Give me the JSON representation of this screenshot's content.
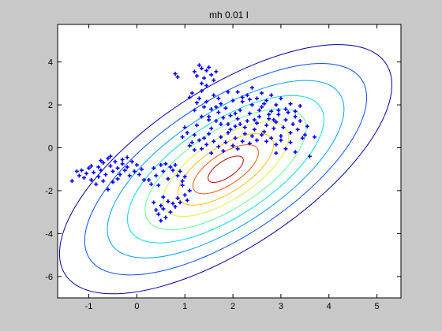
{
  "chart_data": {
    "type": "scatter",
    "title": "mh 0.01 I",
    "xlabel": "",
    "ylabel": "",
    "xlim": [
      -1.65,
      5.5
    ],
    "ylim": [
      -7.0,
      5.75
    ],
    "xticks": [
      "-1",
      "0",
      "1",
      "2",
      "3",
      "4",
      "5"
    ],
    "xtick_values": [
      -1,
      0,
      1,
      2,
      3,
      4,
      5
    ],
    "yticks": [
      "4",
      "2",
      "0",
      "-2",
      "-4",
      "-6"
    ],
    "ytick_values": [
      4,
      2,
      0,
      -2,
      -4,
      -6
    ],
    "grid": false,
    "colors": {
      "figure_bg": "#c8c8c8",
      "axes_bg": "#ffffff",
      "points": "#0000ff"
    },
    "gaussian": {
      "mean": [
        1.85,
        -1.0
      ],
      "covariance": [
        [
          1.1,
          1.25
        ],
        [
          1.25,
          3.1
        ]
      ],
      "contour_levels": [
        {
          "mahalanobis": 3.3,
          "color": "#0000a8"
        },
        {
          "mahalanobis": 2.8,
          "color": "#0050ff"
        },
        {
          "mahalanobis": 2.35,
          "color": "#00a0ff"
        },
        {
          "mahalanobis": 1.95,
          "color": "#00e0e0"
        },
        {
          "mahalanobis": 1.6,
          "color": "#60ff90"
        },
        {
          "mahalanobis": 1.25,
          "color": "#d0ff30"
        },
        {
          "mahalanobis": 0.95,
          "color": "#ffc000"
        },
        {
          "mahalanobis": 0.65,
          "color": "#ff5000"
        },
        {
          "mahalanobis": 0.35,
          "color": "#c00000"
        }
      ]
    },
    "series": [
      {
        "marker": "+",
        "points": [
          [
            -1.35,
            -1.55
          ],
          [
            -1.2,
            -1.3
          ],
          [
            -1.15,
            -1.05
          ],
          [
            -1.1,
            -1.4
          ],
          [
            -1.05,
            -1.2
          ],
          [
            -1.0,
            -0.95
          ],
          [
            -0.95,
            -1.5
          ],
          [
            -0.9,
            -1.15
          ],
          [
            -0.85,
            -1.7
          ],
          [
            -0.8,
            -1.35
          ],
          [
            -0.8,
            -0.9
          ],
          [
            -0.75,
            -1.05
          ],
          [
            -0.7,
            -0.7
          ],
          [
            -0.7,
            -1.55
          ],
          [
            -0.65,
            -1.25
          ],
          [
            -0.6,
            -0.5
          ],
          [
            -0.6,
            -1.95
          ],
          [
            -0.55,
            -0.85
          ],
          [
            -0.5,
            -1.1
          ],
          [
            -0.5,
            -1.6
          ],
          [
            -0.45,
            -0.65
          ],
          [
            -0.4,
            -1.45
          ],
          [
            -0.4,
            -0.95
          ],
          [
            -0.35,
            -1.25
          ],
          [
            -0.3,
            -0.75
          ],
          [
            -0.3,
            -0.55
          ],
          [
            -0.25,
            -1.05
          ],
          [
            -0.2,
            -0.9
          ],
          [
            -0.15,
            -1.3
          ],
          [
            -0.1,
            -0.65
          ],
          [
            -0.05,
            -1.1
          ],
          [
            0.0,
            -0.8
          ],
          [
            0.05,
            -1.25
          ],
          [
            0.1,
            -1.0
          ],
          [
            0.15,
            -1.5
          ],
          [
            -1.25,
            -1.1
          ],
          [
            -0.95,
            -0.85
          ],
          [
            -0.75,
            -0.6
          ],
          [
            -0.55,
            -0.4
          ],
          [
            -0.2,
            -0.45
          ],
          [
            0.25,
            -1.5
          ],
          [
            0.3,
            -1.7
          ],
          [
            0.35,
            -0.95
          ],
          [
            0.4,
            -1.3
          ],
          [
            0.45,
            -1.75
          ],
          [
            0.5,
            -0.8
          ],
          [
            0.55,
            -1.1
          ],
          [
            0.6,
            -0.75
          ],
          [
            0.65,
            -1.45
          ],
          [
            0.7,
            -0.9
          ],
          [
            0.75,
            -1.05
          ],
          [
            0.8,
            -0.8
          ],
          [
            0.85,
            -1.3
          ],
          [
            0.9,
            -1.1
          ],
          [
            0.95,
            -1.55
          ],
          [
            1.0,
            -1.35
          ],
          [
            0.35,
            -2.55
          ],
          [
            0.4,
            -2.9
          ],
          [
            0.45,
            -3.1
          ],
          [
            0.5,
            -2.7
          ],
          [
            0.55,
            -2.85
          ],
          [
            0.6,
            -3.25
          ],
          [
            0.65,
            -2.5
          ],
          [
            0.7,
            -3.0
          ],
          [
            0.75,
            -2.6
          ],
          [
            0.8,
            -2.75
          ],
          [
            0.85,
            -2.35
          ],
          [
            0.9,
            -2.55
          ],
          [
            1.0,
            -2.2
          ],
          [
            1.05,
            -2.45
          ],
          [
            1.1,
            -2.0
          ],
          [
            0.5,
            -3.4
          ],
          [
            0.55,
            -2.3
          ],
          [
            0.95,
            -1.75
          ],
          [
            0.8,
            3.45
          ],
          [
            0.85,
            3.3
          ],
          [
            1.2,
            3.55
          ],
          [
            1.25,
            3.35
          ],
          [
            1.3,
            3.85
          ],
          [
            1.35,
            3.7
          ],
          [
            1.4,
            3.25
          ],
          [
            1.45,
            3.6
          ],
          [
            1.5,
            3.75
          ],
          [
            1.55,
            3.4
          ],
          [
            1.6,
            3.15
          ],
          [
            1.65,
            3.55
          ],
          [
            1.35,
            3.0
          ],
          [
            1.45,
            2.9
          ],
          [
            1.1,
            2.35
          ],
          [
            1.15,
            2.55
          ],
          [
            1.2,
            1.75
          ],
          [
            1.25,
            2.1
          ],
          [
            1.3,
            2.3
          ],
          [
            1.35,
            2.65
          ],
          [
            1.4,
            1.9
          ],
          [
            1.45,
            2.15
          ],
          [
            1.5,
            1.45
          ],
          [
            1.55,
            1.8
          ],
          [
            1.6,
            2.45
          ],
          [
            1.65,
            1.25
          ],
          [
            1.7,
            1.65
          ],
          [
            1.75,
            2.05
          ],
          [
            1.8,
            1.4
          ],
          [
            1.85,
            1.85
          ],
          [
            1.9,
            1.1
          ],
          [
            1.95,
            1.5
          ],
          [
            2.0,
            2.2
          ],
          [
            2.05,
            1.0
          ],
          [
            2.1,
            1.35
          ],
          [
            2.15,
            1.75
          ],
          [
            2.2,
            2.35
          ],
          [
            2.25,
            0.95
          ],
          [
            2.3,
            1.25
          ],
          [
            2.35,
            1.6
          ],
          [
            2.4,
            2.0
          ],
          [
            2.45,
            0.85
          ],
          [
            2.5,
            1.15
          ],
          [
            2.55,
            1.45
          ],
          [
            2.6,
            1.9
          ],
          [
            2.65,
            0.75
          ],
          [
            2.7,
            1.05
          ],
          [
            2.75,
            1.35
          ],
          [
            2.8,
            1.7
          ],
          [
            2.85,
            0.9
          ],
          [
            2.9,
            1.2
          ],
          [
            2.95,
            1.55
          ],
          [
            3.0,
            0.55
          ],
          [
            3.05,
            0.95
          ],
          [
            3.1,
            1.3
          ],
          [
            3.15,
            1.65
          ],
          [
            3.2,
            0.7
          ],
          [
            3.25,
            1.1
          ],
          [
            3.3,
            1.45
          ],
          [
            3.35,
            0.85
          ],
          [
            3.4,
            1.25
          ],
          [
            3.5,
            0.6
          ],
          [
            3.55,
            1.0
          ],
          [
            3.7,
            0.5
          ],
          [
            1.0,
            0.95
          ],
          [
            1.05,
            0.7
          ],
          [
            0.95,
            0.5
          ],
          [
            1.15,
            0.25
          ],
          [
            1.2,
            0.6
          ],
          [
            1.3,
            0.35
          ],
          [
            1.35,
            -0.05
          ],
          [
            1.4,
            0.45
          ],
          [
            1.45,
            0.15
          ],
          [
            1.5,
            0.65
          ],
          [
            1.55,
            -0.25
          ],
          [
            1.6,
            0.3
          ],
          [
            1.7,
            0.05
          ],
          [
            1.75,
            0.5
          ],
          [
            1.8,
            -0.15
          ],
          [
            1.85,
            0.25
          ],
          [
            1.9,
            0.7
          ],
          [
            2.0,
            0.1
          ],
          [
            2.05,
            0.45
          ],
          [
            2.1,
            -0.05
          ],
          [
            2.2,
            0.3
          ],
          [
            2.25,
            0.65
          ],
          [
            2.35,
            0.2
          ],
          [
            2.4,
            0.55
          ],
          [
            2.5,
            0.35
          ],
          [
            2.6,
            0.6
          ],
          [
            2.7,
            0.3
          ],
          [
            2.8,
            0.45
          ],
          [
            2.9,
            0.15
          ],
          [
            3.0,
            0.35
          ],
          [
            3.1,
            -0.05
          ],
          [
            3.2,
            0.25
          ],
          [
            2.1,
            2.6
          ],
          [
            2.2,
            2.15
          ],
          [
            2.3,
            2.45
          ],
          [
            2.4,
            2.8
          ],
          [
            2.5,
            2.3
          ],
          [
            2.6,
            2.55
          ],
          [
            2.7,
            2.2
          ],
          [
            2.8,
            2.45
          ],
          [
            2.9,
            2.0
          ],
          [
            3.0,
            2.3
          ],
          [
            3.1,
            1.8
          ],
          [
            3.2,
            2.05
          ],
          [
            3.3,
            1.7
          ],
          [
            3.4,
            1.95
          ],
          [
            2.35,
            2.25
          ],
          [
            2.55,
            1.75
          ],
          [
            2.65,
            2.05
          ],
          [
            2.75,
            1.55
          ],
          [
            2.85,
            1.3
          ],
          [
            2.95,
            1.75
          ],
          [
            1.25,
            1.05
          ],
          [
            1.35,
            1.45
          ],
          [
            1.55,
            0.9
          ],
          [
            1.65,
            1.9
          ],
          [
            1.75,
            1.1
          ],
          [
            1.95,
            0.85
          ],
          [
            2.15,
            1.1
          ],
          [
            2.45,
            1.3
          ],
          [
            1.5,
            1.3
          ],
          [
            2.05,
            1.6
          ],
          [
            1.7,
            2.3
          ],
          [
            1.9,
            2.6
          ],
          [
            3.45,
            0.45
          ],
          [
            3.6,
            -0.4
          ],
          [
            3.3,
            -0.2
          ],
          [
            2.9,
            -0.25
          ],
          [
            1.2,
            -0.1
          ],
          [
            1.1,
            0.1
          ]
        ]
      }
    ]
  }
}
